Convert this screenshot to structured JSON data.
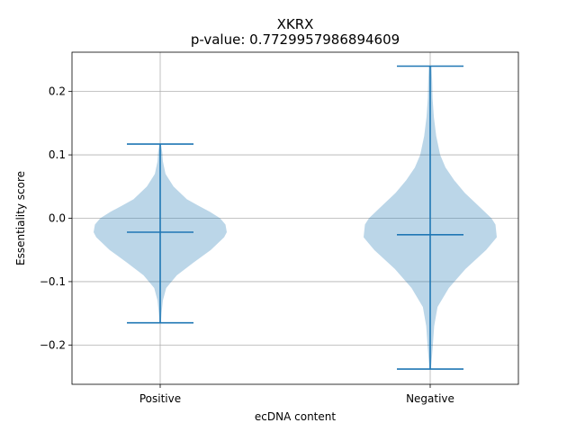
{
  "chart_data": {
    "type": "violin",
    "title": "XKRX",
    "subtitle": "p-value: 0.7729957986894609",
    "xlabel": "ecDNA content",
    "ylabel": "Essentiality score",
    "categories": [
      "Positive",
      "Negative"
    ],
    "ylim": [
      -0.262,
      0.262
    ],
    "yticks": [
      -0.2,
      -0.1,
      0.0,
      0.1,
      0.2
    ],
    "ytick_labels": [
      "−0.2",
      "−0.1",
      "0.0",
      "0.1",
      "0.2"
    ],
    "grid": true,
    "color": "#1f77b4",
    "violins": [
      {
        "category": "Positive",
        "min": -0.165,
        "median": -0.022,
        "max": 0.117,
        "density": [
          [
            -0.165,
            0.01
          ],
          [
            -0.15,
            0.02
          ],
          [
            -0.13,
            0.04
          ],
          [
            -0.11,
            0.09
          ],
          [
            -0.09,
            0.25
          ],
          [
            -0.07,
            0.5
          ],
          [
            -0.05,
            0.76
          ],
          [
            -0.03,
            0.96
          ],
          [
            -0.022,
            1.0
          ],
          [
            -0.01,
            0.98
          ],
          [
            0.0,
            0.9
          ],
          [
            0.01,
            0.75
          ],
          [
            0.02,
            0.57
          ],
          [
            0.03,
            0.4
          ],
          [
            0.05,
            0.2
          ],
          [
            0.07,
            0.08
          ],
          [
            0.09,
            0.04
          ],
          [
            0.105,
            0.03
          ],
          [
            0.117,
            0.01
          ]
        ]
      },
      {
        "category": "Negative",
        "min": -0.238,
        "median": -0.026,
        "max": 0.24,
        "density": [
          [
            -0.238,
            0.01
          ],
          [
            -0.22,
            0.025
          ],
          [
            -0.2,
            0.04
          ],
          [
            -0.17,
            0.06
          ],
          [
            -0.14,
            0.11
          ],
          [
            -0.11,
            0.28
          ],
          [
            -0.08,
            0.53
          ],
          [
            -0.05,
            0.84
          ],
          [
            -0.03,
            1.0
          ],
          [
            -0.01,
            0.98
          ],
          [
            0.0,
            0.92
          ],
          [
            0.02,
            0.72
          ],
          [
            0.04,
            0.52
          ],
          [
            0.06,
            0.36
          ],
          [
            0.08,
            0.23
          ],
          [
            0.1,
            0.15
          ],
          [
            0.13,
            0.09
          ],
          [
            0.16,
            0.055
          ],
          [
            0.19,
            0.035
          ],
          [
            0.215,
            0.03
          ],
          [
            0.24,
            0.02
          ]
        ]
      }
    ]
  }
}
